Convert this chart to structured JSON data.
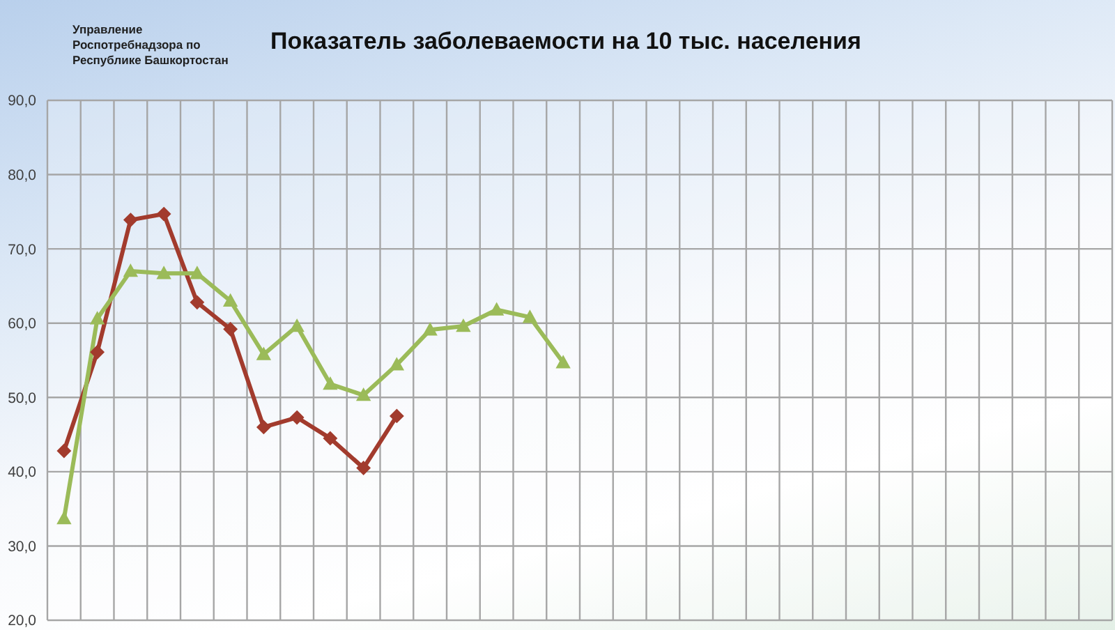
{
  "chart_data": {
    "type": "line",
    "title": "Показатель заболеваемости на 10 тыс. населения",
    "annotations": [
      "Управление Роспотребнадзора по Республике Башкортостан"
    ],
    "categories": [
      null,
      null,
      null,
      null,
      null,
      null,
      null,
      null,
      null,
      null,
      null,
      null,
      null,
      null,
      null,
      null,
      null,
      null,
      null,
      null,
      null,
      null,
      null,
      null,
      null,
      null,
      null,
      null,
      null,
      null,
      null,
      null
    ],
    "series": [
      {
        "color": "#a23b2d",
        "marker": "diamond",
        "values": [
          42.8,
          56.1,
          73.9,
          74.7,
          62.8,
          59.2,
          46.0,
          47.3,
          44.5,
          40.5,
          47.5,
          null,
          null,
          null,
          null,
          null,
          null,
          null,
          null,
          null,
          null,
          null,
          null,
          null,
          null,
          null,
          null,
          null,
          null,
          null,
          null,
          null
        ]
      },
      {
        "color": "#9bbb59",
        "marker": "triangle",
        "values": [
          33.7,
          60.6,
          67.0,
          66.7,
          66.7,
          63.0,
          55.8,
          59.6,
          51.8,
          50.3,
          54.4,
          59.1,
          59.6,
          61.8,
          60.8,
          54.7,
          null,
          null,
          null,
          null,
          null,
          null,
          null,
          null,
          null,
          null,
          null,
          null,
          null,
          null,
          null,
          null
        ]
      }
    ],
    "ylim": [
      20,
      90
    ],
    "yticks": [
      {
        "value": 20,
        "label": "20,0"
      },
      {
        "value": 30,
        "label": "30,0"
      },
      {
        "value": 40,
        "label": "40,0"
      },
      {
        "value": 50,
        "label": "50,0"
      },
      {
        "value": 60,
        "label": "60,0"
      },
      {
        "value": 70,
        "label": "70,0"
      },
      {
        "value": 80,
        "label": "80,0"
      },
      {
        "value": 90,
        "label": "90,0"
      }
    ],
    "grid": true,
    "tick_labels": "y",
    "line_style": "solid"
  }
}
